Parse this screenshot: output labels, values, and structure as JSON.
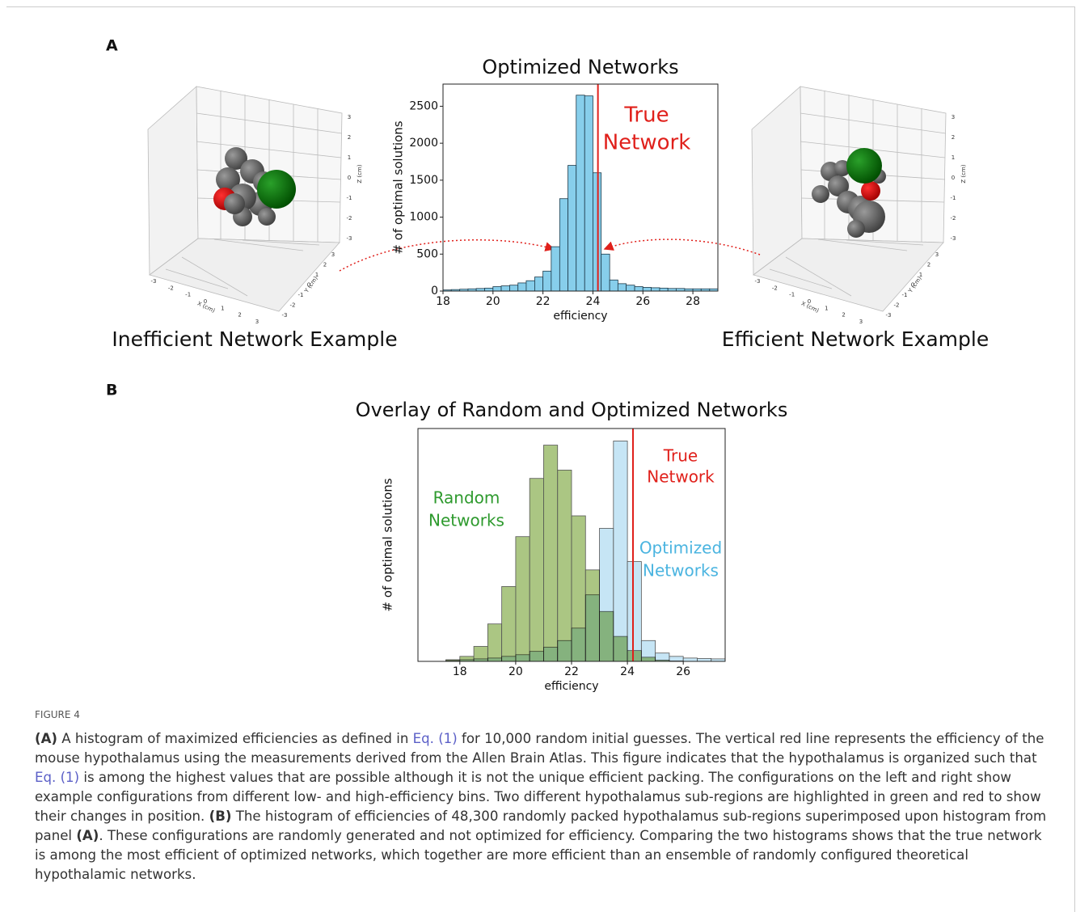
{
  "panel_a": {
    "label": "A",
    "left_plot": {
      "title": "Inefficient Network Example",
      "ticks": [
        -3,
        -2,
        -1,
        0,
        1,
        2,
        3
      ],
      "x_label": "X (cm)",
      "y_label": "Y (cm)",
      "z_label": "Z (cm)"
    },
    "right_plot": {
      "title": "Efficient Network Example",
      "ticks": [
        -3,
        -2,
        -1,
        0,
        1,
        2,
        3
      ],
      "x_label": "X (cm)",
      "y_label": "Y (cm)",
      "z_label": "Z (cm)"
    }
  },
  "panel_b": {
    "label": "B"
  },
  "chart_data": [
    {
      "type": "histogram",
      "title": "Optimized Networks",
      "x_label": "efficiency",
      "y_label": "# of optimal solutions",
      "bins": [
        18,
        18.33,
        18.67,
        19,
        19.33,
        19.67,
        20,
        20.33,
        20.67,
        21,
        21.33,
        21.67,
        22,
        22.33,
        22.67,
        23,
        23.33,
        23.67,
        24,
        24.33,
        24.67,
        25,
        25.33,
        25.67,
        26,
        26.33,
        26.67,
        27,
        27.33,
        27.67,
        28,
        28.33,
        28.67,
        29
      ],
      "series": [
        {
          "color": "#87ceeb",
          "values": [
            15,
            20,
            25,
            30,
            35,
            40,
            60,
            70,
            80,
            110,
            140,
            190,
            270,
            600,
            1250,
            1700,
            2650,
            2640,
            1600,
            500,
            150,
            100,
            80,
            60,
            50,
            45,
            40,
            35,
            35,
            30,
            30,
            30,
            30
          ]
        }
      ],
      "xlim": [
        18,
        29
      ],
      "ylim": [
        0,
        2800
      ],
      "xticks": [
        18,
        20,
        22,
        24,
        26,
        28
      ],
      "yticks": [
        0,
        500,
        1000,
        1500,
        2000,
        2500
      ],
      "reference_line": 24.2,
      "reference_color": "#e0201b",
      "annotations": [
        {
          "lines": [
            "True",
            "Network"
          ],
          "color": "#e0201b"
        }
      ]
    },
    {
      "type": "histogram",
      "title": "Overlay of Random and Optimized Networks",
      "x_label": "efficiency",
      "y_label": "# of optimal solutions",
      "bins": [
        17,
        17.5,
        18,
        18.5,
        19,
        19.5,
        20,
        20.5,
        21,
        21.5,
        22,
        22.5,
        23,
        23.5,
        24,
        24.5,
        25,
        25.5,
        26,
        26.5,
        27,
        27.5
      ],
      "series": [
        {
          "label_lines": [
            "Random",
            "Networks"
          ],
          "color": "#8fb35a",
          "label_color": "#2e9a2e",
          "values": [
            0,
            20,
            60,
            180,
            450,
            900,
            1500,
            2200,
            2600,
            2300,
            1750,
            1100,
            600,
            300,
            130,
            50,
            15,
            5,
            0,
            0,
            0
          ]
        },
        {
          "label_lines": [
            "Optimized",
            "Networks"
          ],
          "color": "#b3dcf2",
          "label_color": "#4ab4e0",
          "values": [
            0,
            10,
            20,
            30,
            40,
            60,
            80,
            120,
            170,
            250,
            400,
            800,
            1600,
            2650,
            1200,
            250,
            100,
            60,
            40,
            35,
            30
          ]
        }
      ],
      "xlim": [
        16.5,
        27.5
      ],
      "ylim": [
        0,
        2800
      ],
      "xticks": [
        18,
        20,
        22,
        24,
        26
      ],
      "reference_line": 24.2,
      "reference_color": "#e0201b",
      "annotations": [
        {
          "lines": [
            "True",
            "Network"
          ],
          "color": "#e0201b"
        }
      ]
    }
  ],
  "caption": {
    "figure_label": "FIGURE 4",
    "parts": [
      "(A)",
      " A histogram of maximized efficiencies as defined in ",
      "Eq. (1)",
      " for 10,000 random initial guesses. The vertical red line represents the efficiency of the mouse hypothalamus using the measurements derived from the Allen Brain Atlas. This figure indicates that the hypothalamus is organized such that ",
      "Eq. (1)",
      " is among the highest values that are possible although it is not the unique efficient packing. The configurations on the left and right show example configurations from different low- and high-efficiency bins. Two different hypothalamus sub-regions are highlighted in green and red to show their changes in position. ",
      "(B)",
      " The histogram of efficiencies of 48,300 randomly packed hypothalamus sub-regions superimposed upon histogram from panel ",
      "(A)",
      ". These configurations are randomly generated and not optimized for efficiency. Comparing the two histograms shows that the true network is among the most efficient of optimized networks, which together are more efficient than an ensemble of randomly configured theoretical hypothalamic networks."
    ]
  }
}
